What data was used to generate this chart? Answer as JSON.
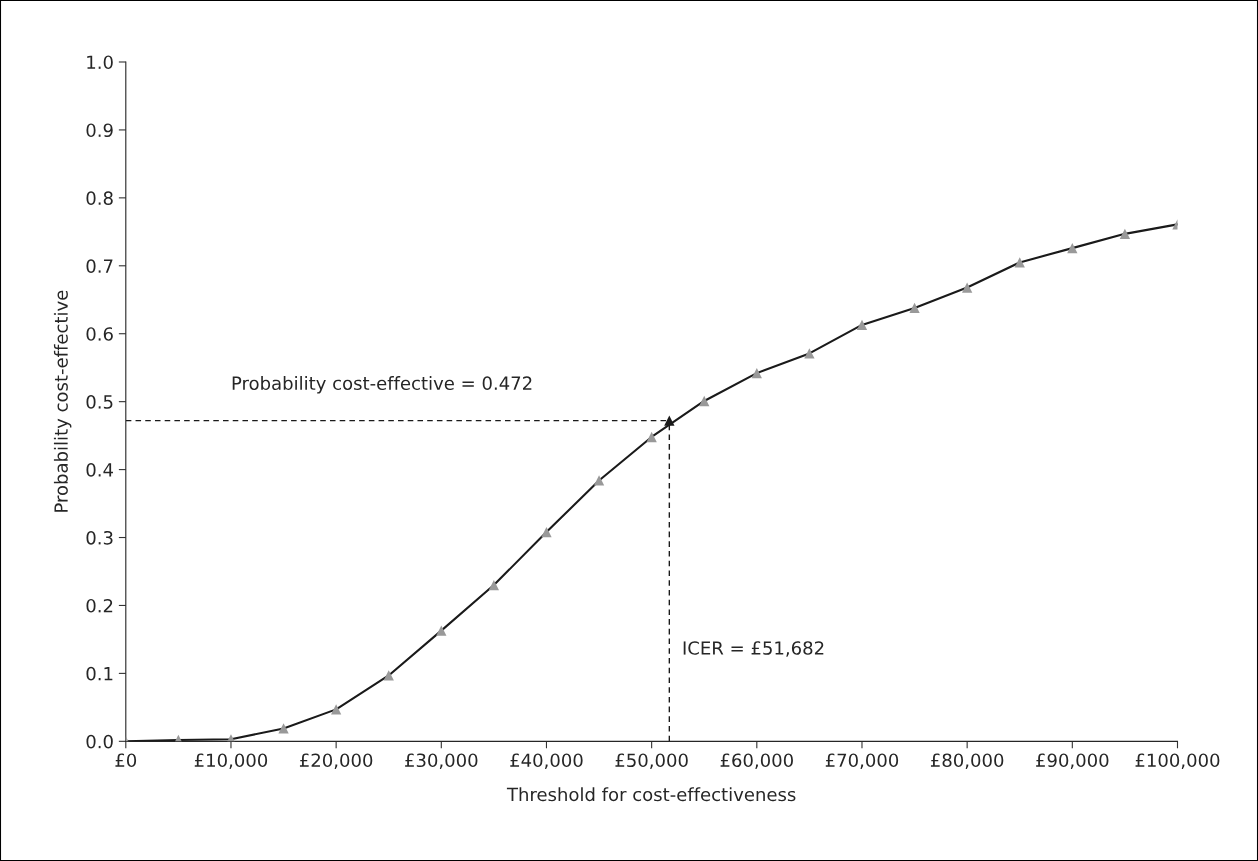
{
  "chart_data": {
    "type": "line",
    "xlabel": "Threshold for cost-effectiveness",
    "ylabel": "Probability cost-effective",
    "x": [
      0,
      5000,
      10000,
      15000,
      20000,
      25000,
      30000,
      35000,
      40000,
      45000,
      50000,
      55000,
      60000,
      65000,
      70000,
      75000,
      80000,
      85000,
      90000,
      95000,
      100000
    ],
    "series": [
      {
        "color": "#1a1a1a",
        "colors": [
          "#999999",
          "#999999",
          "#999999",
          "#999999",
          "#999999",
          "#999999",
          "#999999",
          "#999999",
          "#999999",
          "#999999",
          "#999999",
          "#999999",
          "#999999",
          "#999999",
          "#999999",
          "#999999",
          "#999999",
          "#999999",
          "#999999",
          "#999999",
          "#999999"
        ],
        "values": [
          0.0,
          0.002,
          0.003,
          0.019,
          0.047,
          0.097,
          0.163,
          0.23,
          0.308,
          0.384,
          0.448,
          0.501,
          0.542,
          0.571,
          0.613,
          0.638,
          0.668,
          0.705,
          0.726,
          0.747,
          0.761
        ]
      },
      {
        "type": "scatter",
        "color": "#1a1a1a",
        "x": [
          51682
        ],
        "values": [
          0.472
        ]
      }
    ],
    "xlim": [
      0,
      100000
    ],
    "xticks": [
      {
        "value": 0,
        "label": "£0"
      },
      {
        "value": 10000,
        "label": "£10,000"
      },
      {
        "value": 20000,
        "label": "£20,000"
      },
      {
        "value": 30000,
        "label": "£30,000"
      },
      {
        "value": 40000,
        "label": "£40,000"
      },
      {
        "value": 50000,
        "label": "£50,000"
      },
      {
        "value": 60000,
        "label": "£60,000"
      },
      {
        "value": 70000,
        "label": "£70,000"
      },
      {
        "value": 80000,
        "label": "£80,000"
      },
      {
        "value": 90000,
        "label": "£90,000"
      },
      {
        "value": 100000,
        "label": "£100,000"
      }
    ],
    "ylim": [
      0,
      1
    ],
    "yticks": [
      {
        "value": 0,
        "label": "0.0"
      },
      0.1,
      0.2,
      0.3,
      0.4,
      0.5,
      0.6,
      0.7,
      0.8,
      0.9,
      {
        "value": 1,
        "label": "1.0"
      }
    ],
    "ref_lines": [
      {
        "axis": "y",
        "value": 0.472,
        "label": "Probability cost-effective = 0.472",
        "color": "#1a1a1a",
        "line_style": "dashed"
      },
      {
        "axis": "x",
        "value": 51682,
        "label": "ICER = £51,682",
        "color": "#1a1a1a",
        "line_style": "dashed"
      }
    ],
    "marker": "triangle",
    "line_style": "solid",
    "grid": false,
    "legend": false
  }
}
